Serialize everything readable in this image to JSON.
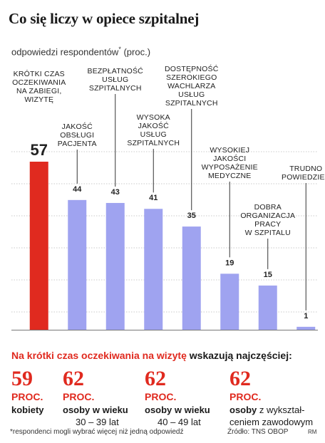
{
  "title": "Co się liczy w opiece szpitalnej",
  "subtitle": "odpowiedzi respondentów",
  "subtitle_mark": "*",
  "subtitle_unit": "(proc.)",
  "colors": {
    "highlight": "#e02a1f",
    "bar": "#9fa3f0",
    "text": "#1a1a1a"
  },
  "chart_data": {
    "type": "bar",
    "title": "Co się liczy w opiece szpitalnej",
    "ylabel": "odpowiedzi respondentów* (proc.)",
    "grid": true,
    "ylim": [
      0,
      60
    ],
    "categories": [
      "KRÓTKI CZAS OCZEKIWANIA NA ZABIEGI, WIZYTĘ",
      "JAKOŚĆ OBSŁUGI PACJENTA",
      "BEZPŁATNOŚĆ USŁUG SZPITALNYCH",
      "WYSOKA JAKOŚĆ USŁUG SZPITALNYCH",
      "DOSTĘPNOŚĆ SZEROKIEGO WACHLARZA USŁUG SZPITALNYCH",
      "WYSOKIEJ JAKOŚCI WYPOSAŻENIE MEDYCZNE",
      "DOBRA ORGANIZACJA PRACY W SZPITALU",
      "TRUDNO POWIEDZIEĆ"
    ],
    "label_lines": [
      [
        "KRÓTKI CZAS",
        "OCZEKIWANIA",
        "NA ZABIEGI,",
        "WIZYTĘ"
      ],
      [
        "JAKOŚĆ",
        "OBSŁUGI",
        "PACJENTA"
      ],
      [
        "BEZPŁATNOŚĆ",
        "USŁUG",
        "SZPITALNYCH"
      ],
      [
        "WYSOKA",
        "JAKOŚĆ",
        "USŁUG",
        "SZPITALNYCH"
      ],
      [
        "DOSTĘPNOŚĆ",
        "SZEROKIEGO",
        "WACHLARZA",
        "USŁUG",
        "SZPITALNYCH"
      ],
      [
        "WYSOKIEJ",
        "JAKOŚCI",
        "WYPOSAŻENIE",
        "MEDYCZNE"
      ],
      [
        "DOBRA",
        "ORGANIZACJA",
        "PRACY",
        "W SZPITALU"
      ],
      [
        "TRUDNO",
        "POWIEDZIEĆ"
      ]
    ],
    "values": [
      57,
      44,
      43,
      41,
      35,
      19,
      15,
      1
    ],
    "value_labels": [
      "57",
      "44",
      "43",
      "41",
      "35",
      "19",
      "15",
      "1"
    ],
    "highlighted_index": 0
  },
  "highlight": {
    "red_part": "Na krótki czas oczekiwania na wizytę",
    "black_part": "wskazują najczęściej:"
  },
  "stats": [
    {
      "value": "59",
      "unit": "PROC.",
      "desc_bold": "kobiety",
      "desc_rest": "",
      "line2": ""
    },
    {
      "value": "62",
      "unit": "PROC.",
      "desc_bold": "osoby w wieku",
      "desc_rest": "",
      "line2": "30 – 39 lat"
    },
    {
      "value": "62",
      "unit": "PROC.",
      "desc_bold": "osoby w wieku",
      "desc_rest": "",
      "line2": "40 – 49 lat"
    },
    {
      "value": "62",
      "unit": "PROC.",
      "desc_bold": "osoby",
      "desc_rest": " z wykształ-",
      "line2": "ceniem zawodowym"
    }
  ],
  "footnote": "*respondenci mogli wybrać więcej niż jedną odpowiedź",
  "source": "Źródło: TNS OBOP",
  "credit": "RM"
}
